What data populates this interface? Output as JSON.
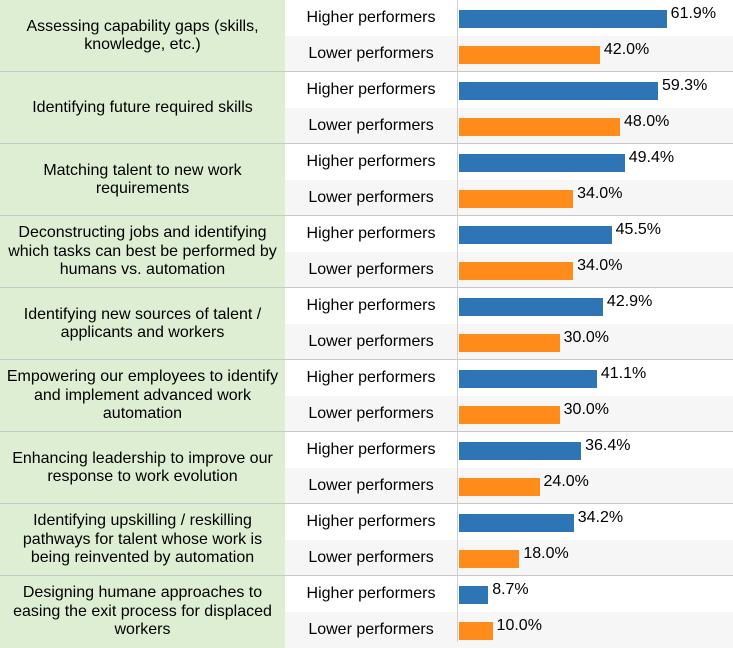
{
  "chart_data": {
    "type": "bar",
    "orientation": "horizontal",
    "value_format": "percent",
    "xlim": [
      0,
      100
    ],
    "series": [
      {
        "name": "Higher performers",
        "color": "#2e75b6",
        "values": [
          61.9,
          59.3,
          49.4,
          45.5,
          42.9,
          41.1,
          36.4,
          34.2,
          8.7
        ]
      },
      {
        "name": "Lower performers",
        "color": "#ff8c1a",
        "values": [
          42.0,
          48.0,
          34.0,
          34.0,
          30.0,
          30.0,
          24.0,
          18.0,
          10.0
        ]
      }
    ],
    "categories": [
      "Assessing capability gaps (skills, knowledge, etc.)",
      "Identifying future required skills",
      "Matching talent to new work requirements",
      "Deconstructing jobs and identifying which tasks can best be performed by humans vs. automation",
      "Identifying new sources of talent / applicants and workers",
      "Empowering our employees to identify and implement advanced work automation",
      "Enhancing leadership to improve our response to work evolution",
      "Identifying upskilling / reskilling pathways for talent whose work is being reinvented by automation",
      "Designing humane approaches to easing the exit process for displaced workers"
    ],
    "value_labels": {
      "Higher performers": [
        "61.9%",
        "59.3%",
        "49.4%",
        "45.5%",
        "42.9%",
        "41.1%",
        "36.4%",
        "34.2%",
        "8.7%"
      ],
      "Lower performers": [
        "42.0%",
        "48.0%",
        "34.0%",
        "34.0%",
        "30.0%",
        "30.0%",
        "24.0%",
        "18.0%",
        "10.0%"
      ]
    }
  }
}
